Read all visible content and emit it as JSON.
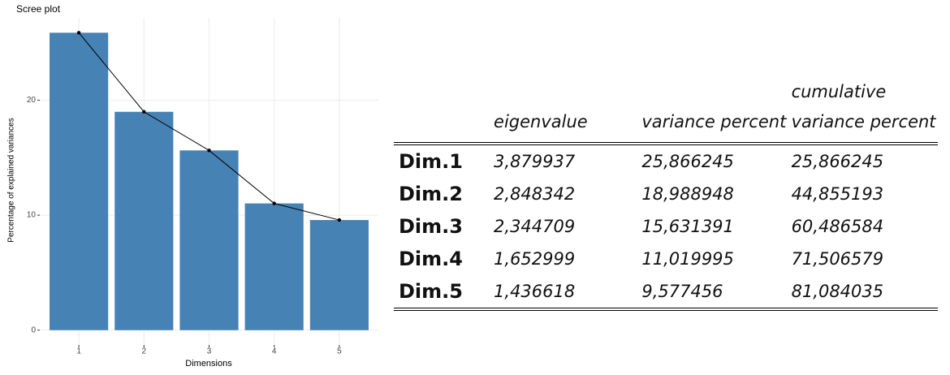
{
  "chart_data": {
    "type": "bar",
    "title": "Scree plot",
    "x_label": "Dimensions",
    "y_label": "Percentage of explained variances",
    "categories": [
      "1",
      "2",
      "3",
      "4",
      "5"
    ],
    "values": [
      25.866245,
      18.988948,
      15.631391,
      11.019995,
      9.577456
    ],
    "color": "#4682b4",
    "line": true,
    "line_color": "#000000",
    "ylim": [
      -1.29,
      27.16
    ],
    "yticks": [
      0,
      10,
      20
    ],
    "grid": true
  },
  "table": {
    "headers": [
      "eigenvalue",
      "variance percent",
      "cumulative variance percent"
    ],
    "rows": [
      {
        "label": "Dim.1",
        "cells": [
          "3,879937",
          "25,866245",
          "25,866245"
        ]
      },
      {
        "label": "Dim.2",
        "cells": [
          "2,848342",
          "18,988948",
          "44,855193"
        ]
      },
      {
        "label": "Dim.3",
        "cells": [
          "2,344709",
          "15,631391",
          "60,486584"
        ]
      },
      {
        "label": "Dim.4",
        "cells": [
          "1,652999",
          "11,019995",
          "71,506579"
        ]
      },
      {
        "label": "Dim.5",
        "cells": [
          "1,436618",
          "9,577456",
          "81,084035"
        ]
      }
    ]
  }
}
